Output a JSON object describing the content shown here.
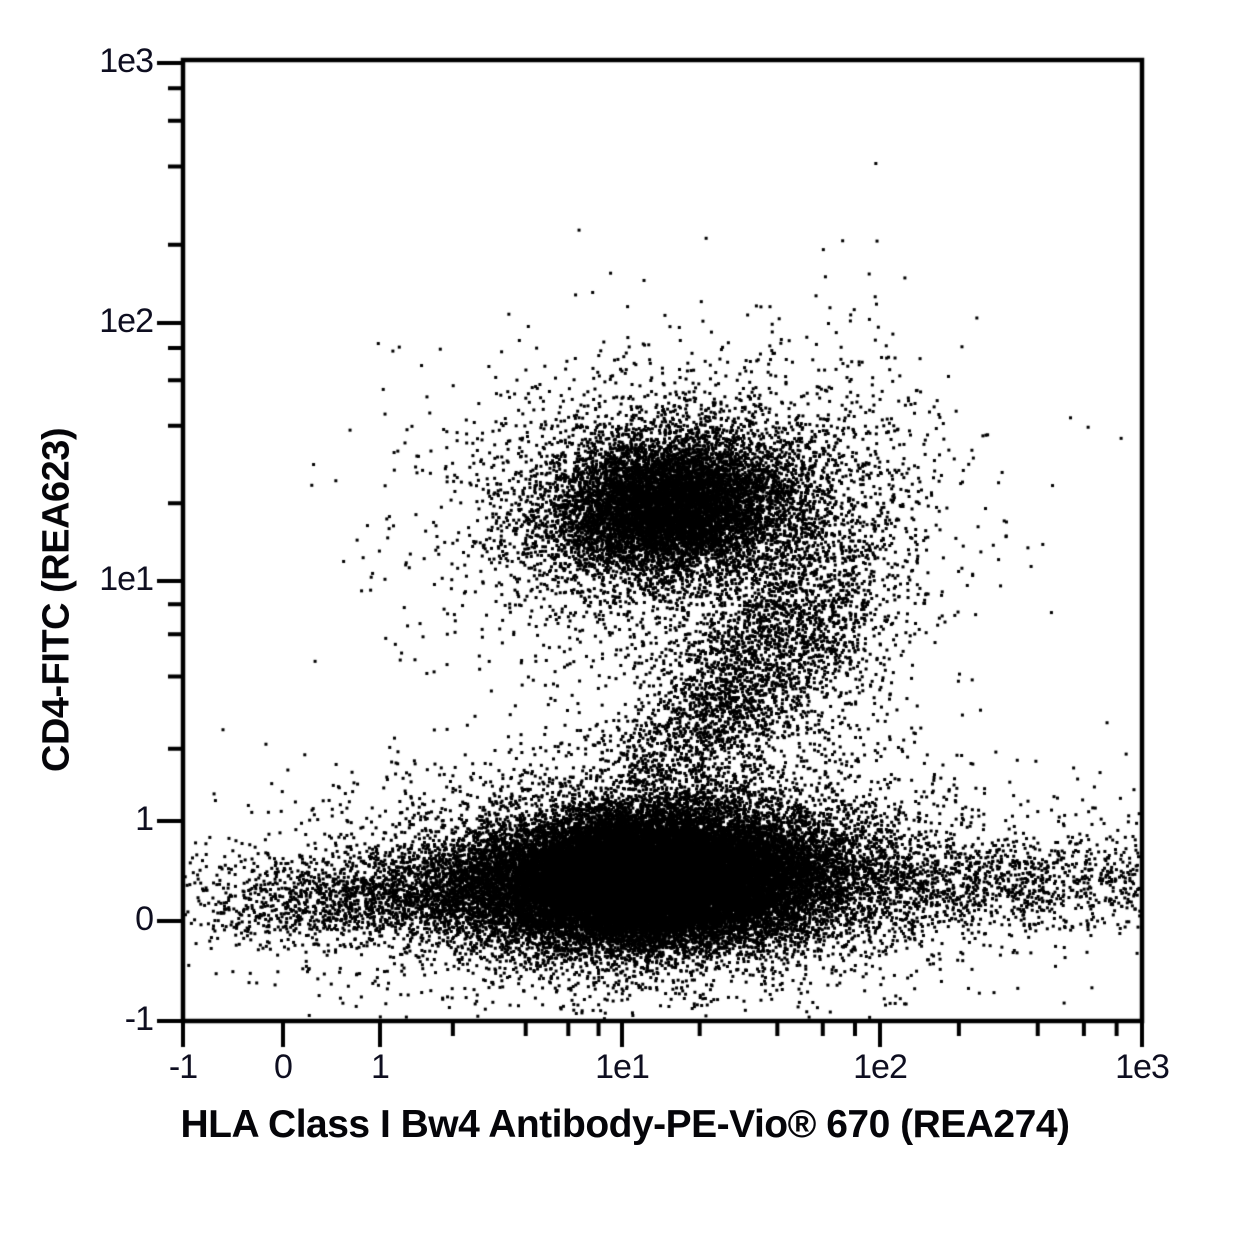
{
  "figure": {
    "background_color": "#ffffff",
    "axis_color": "#000000",
    "dot_color": "#000000",
    "tick_label_color": "#0e0e20"
  },
  "chart_data": {
    "type": "scatter",
    "style": "flow-cytometry-dot-plot",
    "title": "",
    "xlabel": "HLA Class I Bw4 Antibody-PE-Vio® 670 (REA274)",
    "ylabel": "CD4-FITC (REA623)",
    "x_scale": {
      "type": "biexponential",
      "linear_range": [
        -1,
        1
      ],
      "log_range": [
        1,
        1000
      ]
    },
    "y_scale": {
      "type": "biexponential",
      "linear_range": [
        -1,
        1
      ],
      "log_range": [
        1,
        1000
      ]
    },
    "x_ticks": {
      "major": [
        {
          "value": -1,
          "label": "-1"
        },
        {
          "value": 0,
          "label": "0"
        },
        {
          "value": 1,
          "label": "1"
        },
        {
          "value": 10,
          "label": "1e1"
        },
        {
          "value": 100,
          "label": "1e2"
        },
        {
          "value": 1000,
          "label": "1e3"
        }
      ],
      "minor_multiples": [
        2,
        4,
        6,
        8
      ]
    },
    "y_ticks": {
      "major": [
        {
          "value": -1,
          "label": "-1"
        },
        {
          "value": 0,
          "label": "0"
        },
        {
          "value": 1,
          "label": "1"
        },
        {
          "value": 10,
          "label": "1e1"
        },
        {
          "value": 100,
          "label": "1e2"
        },
        {
          "value": 1000,
          "label": "1e3"
        }
      ],
      "minor_multiples": [
        2,
        4,
        6,
        8
      ]
    },
    "seed": 1337,
    "populations": [
      {
        "name": "CD4-positive cluster core",
        "kind": "gauss",
        "n": 8000,
        "x": 15.5,
        "y": 19.5,
        "sx_dec": 0.23,
        "sy_dec": 0.135,
        "corr": 0.08
      },
      {
        "name": "CD4-positive cluster halo",
        "kind": "gauss",
        "n": 3200,
        "x": 17,
        "y": 19,
        "sx_dec": 0.46,
        "sy_dec": 0.3,
        "corr": 0.1
      },
      {
        "name": "CD4-dim transitional trail",
        "kind": "gauss",
        "n": 2600,
        "x": 27,
        "y": 3.4,
        "sx_dec": 0.28,
        "sy_dec": 0.3,
        "corr": 0.75
      },
      {
        "name": "mid-right scatter",
        "kind": "gauss",
        "n": 900,
        "x": 58,
        "y": 7,
        "sx_dec": 0.22,
        "sy_dec": 0.45,
        "corr": 0.2
      },
      {
        "name": "CD4-negative cluster core",
        "kind": "gauss",
        "n": 27000,
        "x": 12.5,
        "y": 0.42,
        "sx_dec": 0.31,
        "sy_dec": 0.127,
        "corr": 0.08
      },
      {
        "name": "CD4-negative cluster halo",
        "kind": "gauss",
        "n": 6000,
        "x": 13,
        "y": 0.45,
        "sx_dec": 0.62,
        "sy_dec": 0.22,
        "corr": 0.08
      },
      {
        "name": "HLA-negative tail",
        "kind": "band",
        "n": 1900,
        "x_range": [
          -1.05,
          3.2
        ],
        "y": 0.25,
        "sy_dec": 0.088,
        "tilt": 0.15,
        "ramp": "rise"
      },
      {
        "name": "HLA-bright tail",
        "kind": "band",
        "n": 2400,
        "x_range": [
          28,
          1000
        ],
        "y": 0.38,
        "sy_dec": 0.105,
        "tilt": -0.05,
        "ramp": "decay"
      },
      {
        "name": "outliers",
        "kind": "points",
        "points": [
          [
            4.8,
            68
          ],
          [
            75,
            68
          ],
          [
            125,
            48
          ],
          [
            -0.6,
            2.4
          ],
          [
            2.0,
            14
          ],
          [
            1.3,
            6.5
          ],
          [
            870,
            1.9
          ],
          [
            950,
            0.55
          ]
        ]
      }
    ]
  }
}
